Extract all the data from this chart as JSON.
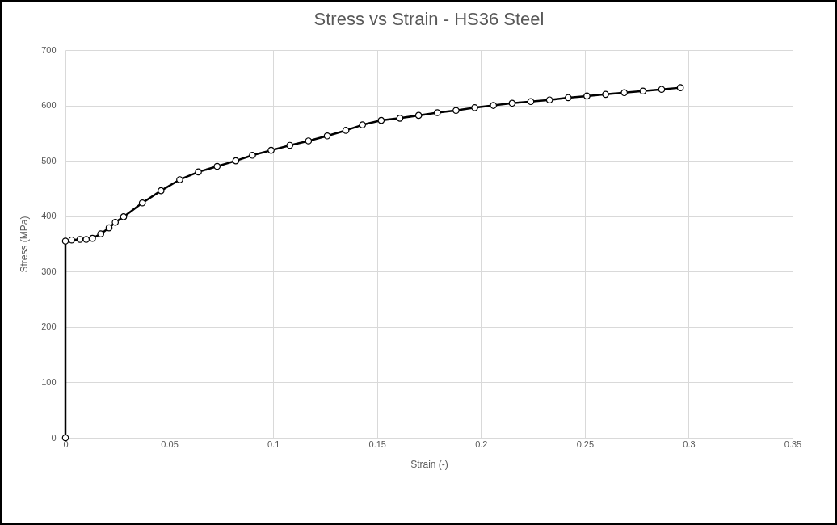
{
  "chart_data": {
    "type": "line",
    "title": "Stress vs Strain - HS36 Steel",
    "xlabel": "Strain (-)",
    "ylabel": "Stress (MPa)",
    "x": [
      0,
      0,
      0.003,
      0.007,
      0.01,
      0.013,
      0.017,
      0.021,
      0.024,
      0.028,
      0.037,
      0.046,
      0.055,
      0.064,
      0.073,
      0.082,
      0.09,
      0.099,
      0.108,
      0.117,
      0.126,
      0.135,
      0.143,
      0.152,
      0.161,
      0.17,
      0.179,
      0.188,
      0.197,
      0.206,
      0.215,
      0.224,
      0.233,
      0.242,
      0.251,
      0.26,
      0.269,
      0.278,
      0.287,
      0.296
    ],
    "series": [
      {
        "color": "#000000",
        "values": [
          0,
          355,
          357,
          358,
          358,
          360,
          368,
          379,
          389,
          399,
          424,
          446,
          466,
          480,
          490,
          500,
          510,
          519,
          528,
          536,
          545,
          555,
          565,
          573,
          577,
          582,
          587,
          591,
          596,
          600,
          604,
          607,
          610,
          614,
          617,
          620,
          623,
          626,
          629,
          632
        ]
      }
    ],
    "xlim": [
      0,
      0.35
    ],
    "xticks": [
      0,
      0.05,
      0.1,
      0.15,
      0.2,
      0.25,
      0.3,
      0.35
    ],
    "ylim": [
      0,
      700
    ],
    "yticks": [
      0,
      100,
      200,
      300,
      400,
      500,
      600,
      700
    ],
    "grid": true,
    "marker": "circle",
    "line_style": "solid",
    "legend": false
  }
}
